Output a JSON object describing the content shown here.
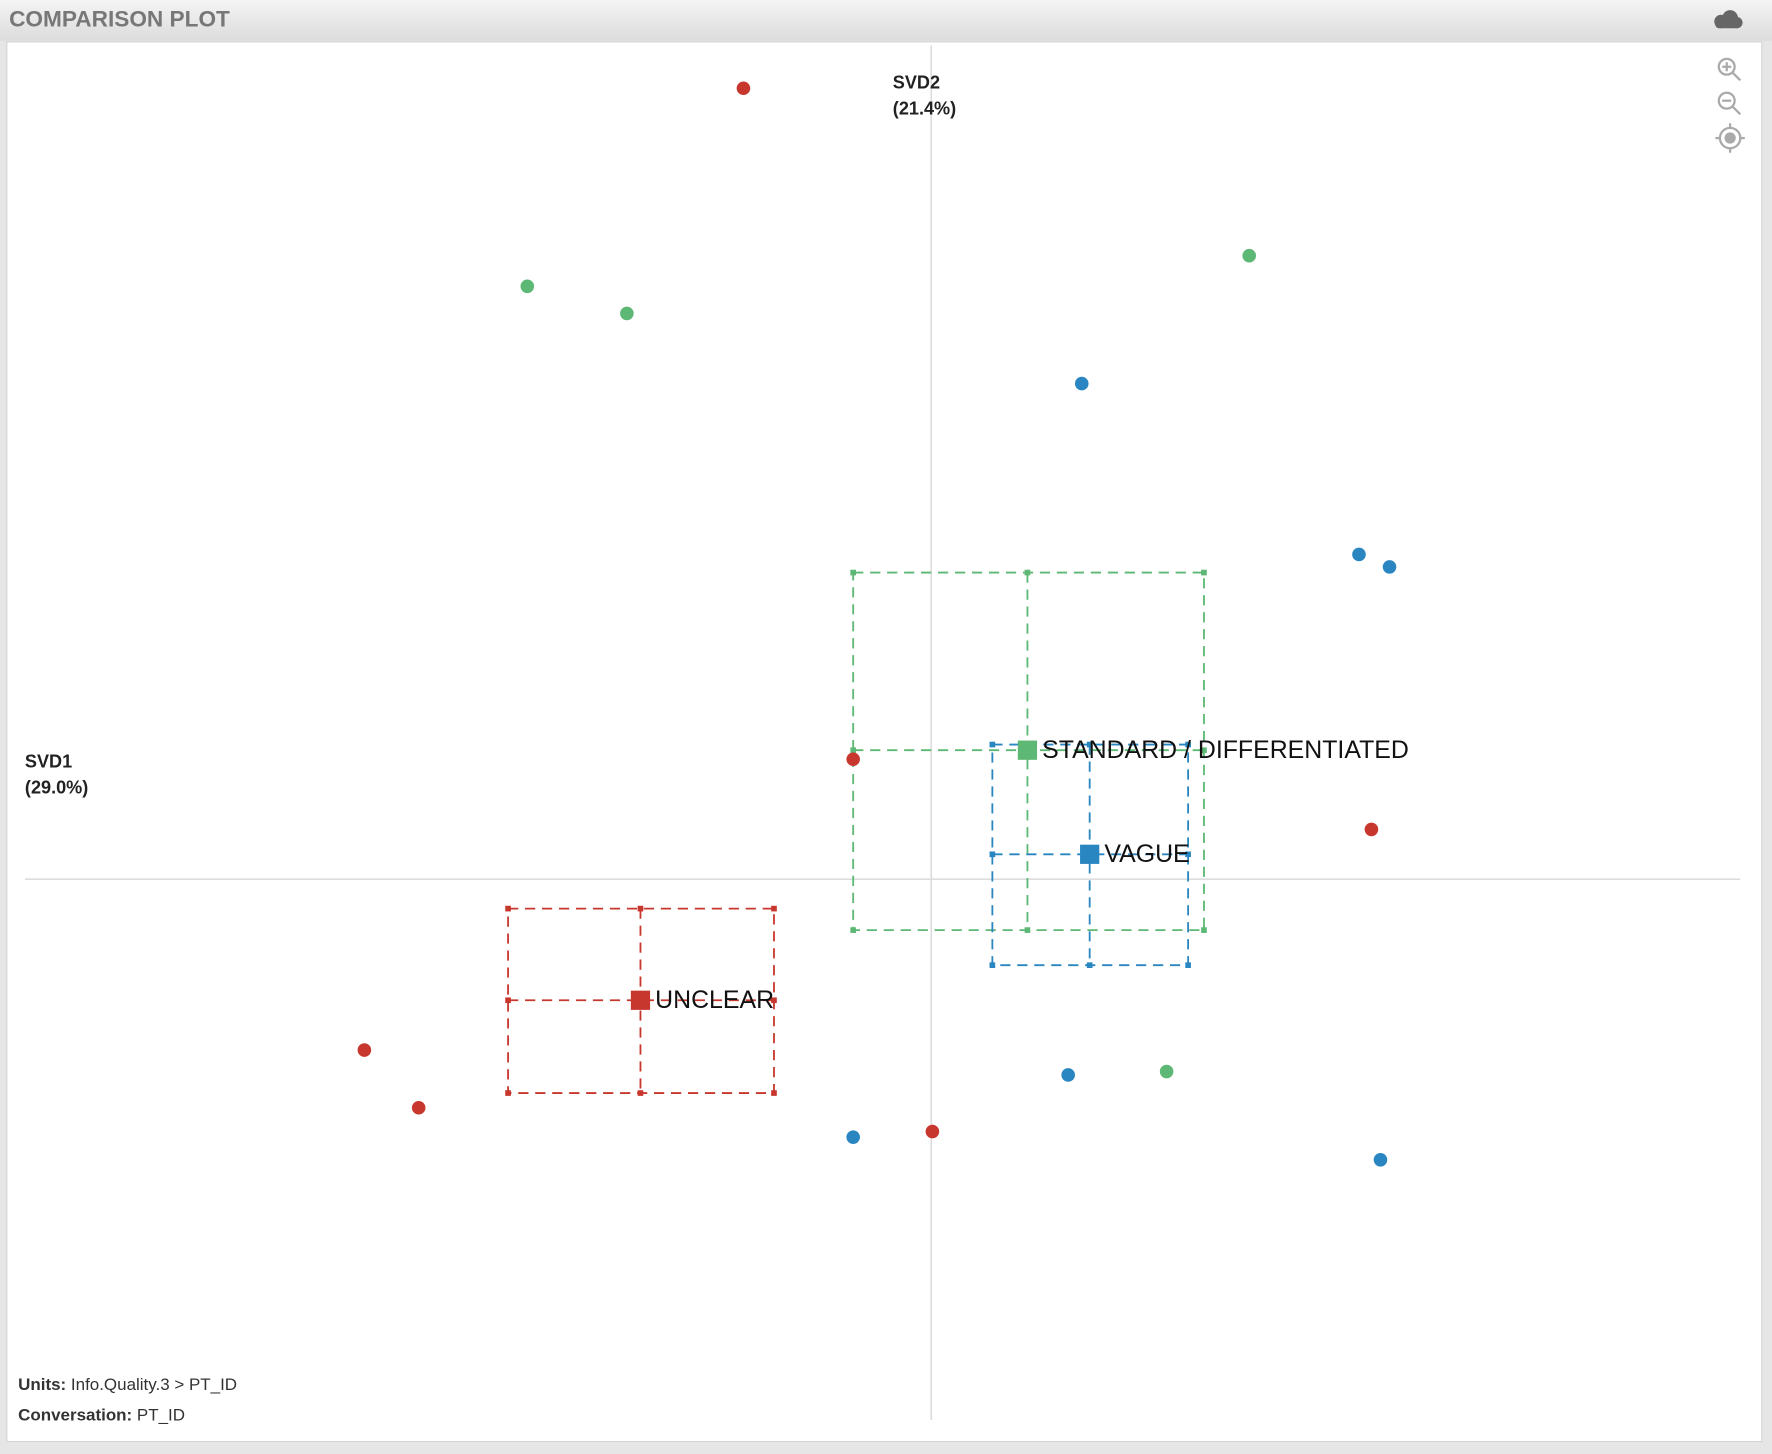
{
  "chart_data": {
    "type": "scatter",
    "title": "COMPARISON PLOT",
    "x_label": [
      "SVD1",
      "(29.0%)"
    ],
    "y_label": [
      "SVD2",
      "(21.4%)"
    ],
    "xlim": [
      -8.15,
      7.32
    ],
    "ylim": [
      -4.95,
      7.39
    ],
    "series": [
      {
        "name": "UNCLEAR",
        "color": "#c8372d",
        "x": [
          -1.66,
          -0.69,
          3.89,
          -5.01,
          -4.53,
          0.01
        ],
        "y": [
          6.99,
          1.06,
          0.44,
          -1.51,
          -2.02,
          -2.23
        ],
        "mean": {
          "x": -2.57,
          "y": -1.07
        },
        "ci_x": [
          -3.74,
          -1.39
        ],
        "ci_y": [
          -0.26,
          -1.89
        ]
      },
      {
        "name": "STANDARD / DIFFERENTIATED",
        "color": "#5cb874",
        "x": [
          -3.57,
          -2.69,
          2.81,
          2.08
        ],
        "y": [
          5.24,
          5.0,
          5.51,
          -1.7
        ],
        "mean": {
          "x": 0.85,
          "y": 1.14
        },
        "ci_x": [
          -0.69,
          2.41
        ],
        "ci_y": [
          2.71,
          -0.45
        ]
      },
      {
        "name": "VAGUE",
        "color": "#2a86c0",
        "x": [
          1.33,
          3.78,
          4.05,
          1.21,
          -0.69,
          3.97
        ],
        "y": [
          4.38,
          2.87,
          2.76,
          -1.73,
          -2.28,
          -2.48
        ],
        "mean": {
          "x": 1.4,
          "y": 0.22
        },
        "ci_x": [
          0.54,
          2.27
        ],
        "ci_y": [
          1.19,
          -0.76
        ]
      }
    ],
    "footer": {
      "units_label": "Units:",
      "units_value": "Info.Quality.3 > PT_ID",
      "conversation_label": "Conversation:",
      "conversation_value": "PT_ID"
    }
  }
}
